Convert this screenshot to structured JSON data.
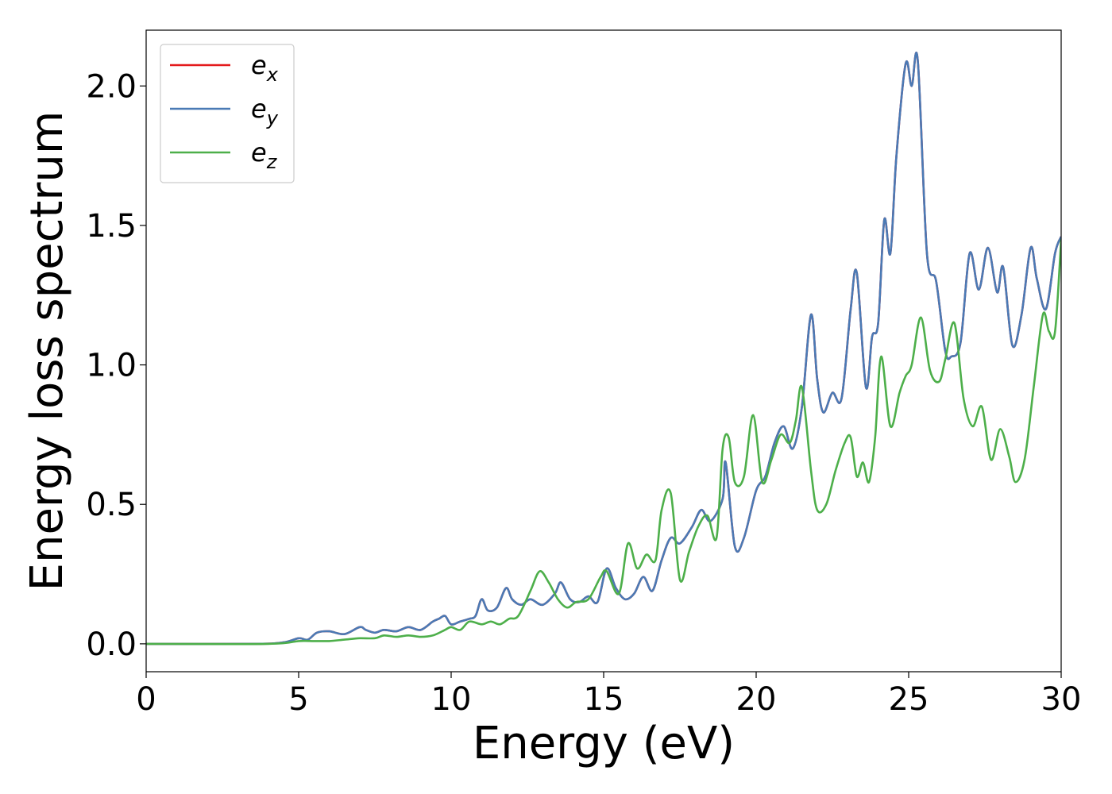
{
  "chart_data": {
    "type": "line",
    "title": "",
    "xlabel": "Energy (eV)",
    "ylabel": "Energy loss spectrum",
    "xlim": [
      0,
      30
    ],
    "ylim": [
      -0.1,
      2.2
    ],
    "xticks": [
      0,
      5,
      10,
      15,
      20,
      25,
      30
    ],
    "xtick_labels": [
      "0",
      "5",
      "10",
      "15",
      "20",
      "25",
      "30"
    ],
    "yticks": [
      0.0,
      0.5,
      1.0,
      1.5,
      2.0
    ],
    "ytick_labels": [
      "0.0",
      "0.5",
      "1.0",
      "1.5",
      "2.0"
    ],
    "grid": false,
    "legend_position": "top-left",
    "series": [
      {
        "name": "e",
        "subscript": "x",
        "color": "#e41a1c",
        "x": [
          0,
          3.5,
          4.5,
          5.0,
          5.3,
          5.6,
          6.0,
          6.5,
          7.0,
          7.2,
          7.5,
          7.8,
          8.2,
          8.6,
          9.0,
          9.4,
          9.6,
          9.8,
          10.0,
          10.3,
          10.6,
          10.8,
          11.0,
          11.2,
          11.5,
          11.8,
          12.0,
          12.3,
          12.6,
          13.0,
          13.4,
          13.6,
          13.9,
          14.2,
          14.5,
          14.8,
          15.1,
          15.4,
          15.7,
          16.0,
          16.3,
          16.6,
          16.9,
          17.2,
          17.5,
          17.9,
          18.2,
          18.5,
          18.9,
          19.0,
          19.3,
          19.6,
          20.0,
          20.3,
          20.6,
          20.9,
          21.2,
          21.5,
          21.8,
          22.0,
          22.2,
          22.5,
          22.8,
          23.1,
          23.3,
          23.6,
          23.8,
          24.0,
          24.2,
          24.4,
          24.6,
          24.9,
          25.1,
          25.3,
          25.6,
          25.9,
          26.2,
          26.4,
          26.7,
          27.0,
          27.3,
          27.6,
          27.9,
          28.1,
          28.4,
          28.7,
          29.0,
          29.2,
          29.5,
          29.8,
          30.0
        ],
        "y": [
          0.0,
          0.0,
          0.005,
          0.02,
          0.015,
          0.04,
          0.045,
          0.035,
          0.06,
          0.05,
          0.04,
          0.05,
          0.045,
          0.06,
          0.05,
          0.08,
          0.09,
          0.1,
          0.07,
          0.08,
          0.09,
          0.1,
          0.16,
          0.12,
          0.13,
          0.2,
          0.16,
          0.14,
          0.16,
          0.14,
          0.18,
          0.22,
          0.16,
          0.15,
          0.17,
          0.15,
          0.27,
          0.2,
          0.16,
          0.18,
          0.24,
          0.19,
          0.3,
          0.38,
          0.36,
          0.42,
          0.48,
          0.44,
          0.52,
          0.65,
          0.35,
          0.38,
          0.55,
          0.6,
          0.72,
          0.78,
          0.7,
          0.85,
          1.18,
          0.95,
          0.83,
          0.9,
          0.88,
          1.2,
          1.33,
          0.92,
          1.1,
          1.15,
          1.52,
          1.4,
          1.75,
          2.08,
          2.0,
          2.09,
          1.4,
          1.3,
          1.05,
          1.03,
          1.08,
          1.4,
          1.27,
          1.42,
          1.26,
          1.35,
          1.07,
          1.18,
          1.42,
          1.31,
          1.2,
          1.4,
          1.46
        ]
      },
      {
        "name": "e",
        "subscript": "y",
        "color": "#4a7ab5",
        "x": [
          0,
          3.5,
          4.5,
          5.0,
          5.3,
          5.6,
          6.0,
          6.5,
          7.0,
          7.2,
          7.5,
          7.8,
          8.2,
          8.6,
          9.0,
          9.4,
          9.6,
          9.8,
          10.0,
          10.3,
          10.6,
          10.8,
          11.0,
          11.2,
          11.5,
          11.8,
          12.0,
          12.3,
          12.6,
          13.0,
          13.4,
          13.6,
          13.9,
          14.2,
          14.5,
          14.8,
          15.1,
          15.4,
          15.7,
          16.0,
          16.3,
          16.6,
          16.9,
          17.2,
          17.5,
          17.9,
          18.2,
          18.5,
          18.9,
          19.0,
          19.3,
          19.6,
          20.0,
          20.3,
          20.6,
          20.9,
          21.2,
          21.5,
          21.8,
          22.0,
          22.2,
          22.5,
          22.8,
          23.1,
          23.3,
          23.6,
          23.8,
          24.0,
          24.2,
          24.4,
          24.6,
          24.9,
          25.1,
          25.3,
          25.6,
          25.9,
          26.2,
          26.4,
          26.7,
          27.0,
          27.3,
          27.6,
          27.9,
          28.1,
          28.4,
          28.7,
          29.0,
          29.2,
          29.5,
          29.8,
          30.0
        ],
        "y": [
          0.0,
          0.0,
          0.005,
          0.02,
          0.015,
          0.04,
          0.045,
          0.035,
          0.06,
          0.05,
          0.04,
          0.05,
          0.045,
          0.06,
          0.05,
          0.08,
          0.09,
          0.1,
          0.07,
          0.08,
          0.09,
          0.1,
          0.16,
          0.12,
          0.13,
          0.2,
          0.16,
          0.14,
          0.16,
          0.14,
          0.18,
          0.22,
          0.16,
          0.15,
          0.17,
          0.15,
          0.27,
          0.2,
          0.16,
          0.18,
          0.24,
          0.19,
          0.3,
          0.38,
          0.36,
          0.42,
          0.48,
          0.44,
          0.52,
          0.65,
          0.35,
          0.38,
          0.55,
          0.6,
          0.72,
          0.78,
          0.7,
          0.85,
          1.18,
          0.95,
          0.83,
          0.9,
          0.88,
          1.2,
          1.33,
          0.92,
          1.1,
          1.15,
          1.52,
          1.4,
          1.75,
          2.08,
          2.0,
          2.09,
          1.4,
          1.3,
          1.05,
          1.03,
          1.08,
          1.4,
          1.27,
          1.42,
          1.26,
          1.35,
          1.07,
          1.18,
          1.42,
          1.31,
          1.2,
          1.4,
          1.46
        ]
      },
      {
        "name": "e",
        "subscript": "z",
        "color": "#4daf4a",
        "x": [
          0,
          4.0,
          5.0,
          5.5,
          6.0,
          6.5,
          7.0,
          7.5,
          7.8,
          8.2,
          8.6,
          9.0,
          9.4,
          9.8,
          10.0,
          10.3,
          10.6,
          11.0,
          11.3,
          11.6,
          11.9,
          12.2,
          12.6,
          12.9,
          13.2,
          13.5,
          13.8,
          14.1,
          14.5,
          14.9,
          15.1,
          15.5,
          15.8,
          16.1,
          16.4,
          16.7,
          16.9,
          17.2,
          17.5,
          17.8,
          18.1,
          18.4,
          18.7,
          18.9,
          19.1,
          19.3,
          19.6,
          19.9,
          20.2,
          20.5,
          20.8,
          21.1,
          21.3,
          21.5,
          21.8,
          22.0,
          22.3,
          22.6,
          22.9,
          23.1,
          23.3,
          23.5,
          23.7,
          23.9,
          24.1,
          24.4,
          24.7,
          24.9,
          25.1,
          25.4,
          25.7,
          26.0,
          26.2,
          26.5,
          26.8,
          27.1,
          27.4,
          27.7,
          28.0,
          28.3,
          28.5,
          28.8,
          29.1,
          29.4,
          29.6,
          29.8,
          30.0
        ],
        "y": [
          0.0,
          0.0,
          0.01,
          0.01,
          0.01,
          0.015,
          0.02,
          0.02,
          0.03,
          0.025,
          0.03,
          0.025,
          0.03,
          0.05,
          0.06,
          0.05,
          0.08,
          0.07,
          0.08,
          0.07,
          0.09,
          0.1,
          0.19,
          0.26,
          0.22,
          0.16,
          0.13,
          0.15,
          0.16,
          0.24,
          0.26,
          0.18,
          0.36,
          0.27,
          0.32,
          0.3,
          0.48,
          0.54,
          0.23,
          0.33,
          0.42,
          0.46,
          0.38,
          0.7,
          0.74,
          0.58,
          0.6,
          0.82,
          0.58,
          0.66,
          0.75,
          0.72,
          0.8,
          0.92,
          0.62,
          0.48,
          0.5,
          0.62,
          0.72,
          0.74,
          0.6,
          0.65,
          0.58,
          0.74,
          1.03,
          0.78,
          0.9,
          0.96,
          1.0,
          1.17,
          0.98,
          0.94,
          1.02,
          1.15,
          0.88,
          0.78,
          0.85,
          0.66,
          0.77,
          0.67,
          0.58,
          0.66,
          0.92,
          1.18,
          1.12,
          1.12,
          1.45
        ]
      }
    ]
  }
}
